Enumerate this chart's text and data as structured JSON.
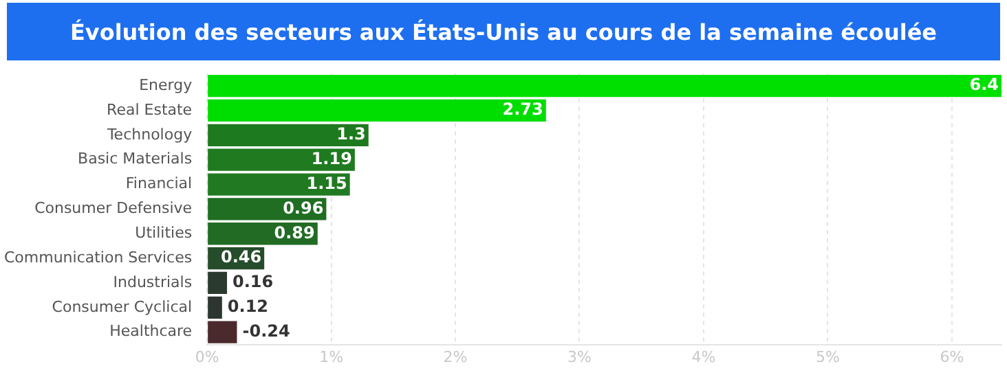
{
  "chart_data": {
    "type": "bar",
    "orientation": "horizontal",
    "title": "Évolution des secteurs aux États-Unis au cours de la semaine écoulée",
    "categories": [
      "Energy",
      "Real Estate",
      "Technology",
      "Basic Materials",
      "Financial",
      "Consumer Defensive",
      "Utilities",
      "Communication Services",
      "Industrials",
      "Consumer Cyclical",
      "Healthcare"
    ],
    "values": [
      6.4,
      2.73,
      1.3,
      1.19,
      1.15,
      0.96,
      0.89,
      0.46,
      0.16,
      0.12,
      -0.24
    ],
    "base": [
      0,
      0,
      0,
      0,
      0,
      0,
      0,
      0,
      0,
      0,
      0.24
    ],
    "colors": [
      "#00e000",
      "#00dd00",
      "#1e7a1e",
      "#1f7a20",
      "#217a22",
      "#1f6e22",
      "#226b25",
      "#264d2b",
      "#2b3a2e",
      "#2c3530",
      "#4a2a2d"
    ],
    "xlim": [
      0,
      6.4
    ],
    "xticks": [
      {
        "value": 0,
        "label": "0%"
      },
      {
        "value": 1,
        "label": "1%"
      },
      {
        "value": 2,
        "label": "2%"
      },
      {
        "value": 3,
        "label": "3%"
      },
      {
        "value": 4,
        "label": "4%"
      },
      {
        "value": 5,
        "label": "5%"
      },
      {
        "value": 6,
        "label": "6%"
      }
    ],
    "data_labels": true,
    "grid": "x",
    "legend": false
  }
}
